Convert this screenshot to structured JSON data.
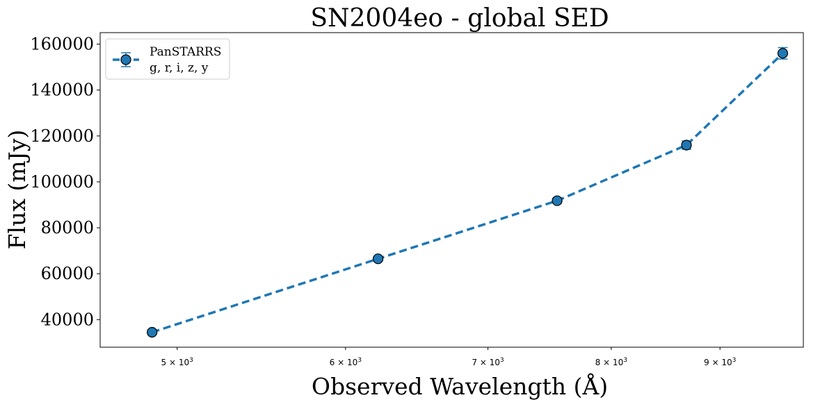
{
  "chart_data": {
    "type": "line",
    "title": "SN2004eo - global SED",
    "xlabel": "Observed Wavelength (Å)",
    "ylabel": "Flux (mJy)",
    "xscale": "log",
    "xlim": [
      4600,
      9850
    ],
    "ylim": [
      28000,
      165000
    ],
    "grid": false,
    "legend_position": "top-left",
    "x_ticks": [
      {
        "value": 5000,
        "mantissa": "5",
        "base": "10",
        "exp": "3"
      },
      {
        "value": 6000,
        "mantissa": "6",
        "base": "10",
        "exp": "3"
      },
      {
        "value": 7000,
        "mantissa": "7",
        "base": "10",
        "exp": "3"
      },
      {
        "value": 8000,
        "mantissa": "8",
        "base": "10",
        "exp": "3"
      },
      {
        "value": 9000,
        "mantissa": "9",
        "base": "10",
        "exp": "3"
      }
    ],
    "y_ticks": [
      40000,
      60000,
      80000,
      100000,
      120000,
      140000,
      160000
    ],
    "y_tick_labels": [
      "40000",
      "60000",
      "80000",
      "100000",
      "120000",
      "140000",
      "160000"
    ],
    "series": [
      {
        "name": "PanSTARRS",
        "legend_sub": "g, r, i, z, y",
        "color": "#1f77b4",
        "line_style": "dashed",
        "marker": "circle",
        "x": [
          4866,
          6215,
          7545,
          8679,
          9633
        ],
        "y": [
          34500,
          66500,
          91800,
          116000,
          156000
        ],
        "yerr": [
          800,
          900,
          1000,
          1800,
          2500
        ]
      }
    ]
  }
}
